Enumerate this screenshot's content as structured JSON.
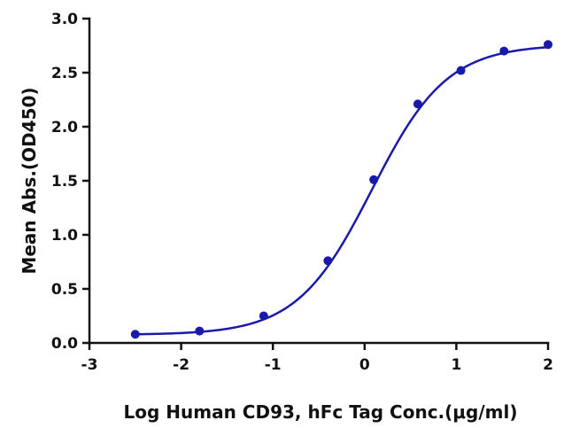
{
  "chart_data": {
    "type": "scatter",
    "title": "",
    "xlabel": "Log Human CD93, hFc Tag Conc.(μg/ml)",
    "ylabel": "Mean Abs.(OD450)",
    "xlim": [
      -3,
      2
    ],
    "ylim": [
      0,
      3.0
    ],
    "x_ticks": [
      -3,
      -2,
      -1,
      0,
      1,
      2
    ],
    "y_ticks": [
      0.0,
      0.5,
      1.0,
      1.5,
      2.0,
      2.5,
      3.0
    ],
    "x_tick_labels": [
      "-3",
      "-2",
      "-1",
      "0",
      "1",
      "2"
    ],
    "y_tick_labels": [
      "0.0",
      "0.5",
      "1.0",
      "1.5",
      "2.0",
      "2.5",
      "3.0"
    ],
    "grid": false,
    "legend": "none",
    "color": "#1a1aaa",
    "series": [
      {
        "x": [
          -2.5,
          -1.8,
          -1.1,
          -0.4,
          0.1,
          0.58,
          1.05,
          1.52,
          2.0
        ],
        "y": [
          0.08,
          0.11,
          0.25,
          0.76,
          1.51,
          2.21,
          2.52,
          2.7,
          2.76
        ],
        "fit": {
          "model": "4PL",
          "bottom": 0.075,
          "top": 2.76,
          "logEC50": 0.08,
          "hill": 1.06
        }
      }
    ]
  }
}
